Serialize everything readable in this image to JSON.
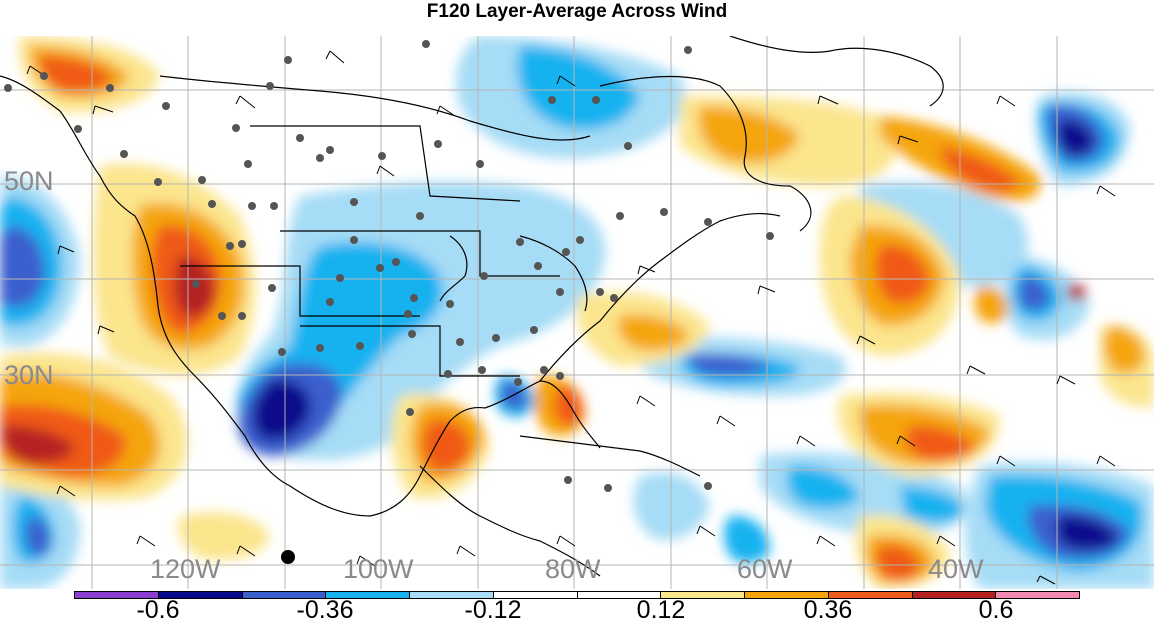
{
  "title": "F120 Layer-Average Across Wind",
  "lat_labels": [
    "50N",
    "30N"
  ],
  "lon_labels": [
    "120W",
    "100W",
    "80W",
    "60W",
    "40W"
  ],
  "colorbar": {
    "colors": [
      "#8a3fd0",
      "#0a0a8c",
      "#3a5fcd",
      "#18b2f0",
      "#a6dcf6",
      "#ffffff",
      "#ffffff",
      "#fbe58d",
      "#f5a50a",
      "#f05a18",
      "#b52020",
      "#f38ab4"
    ],
    "labels": [
      "-0.6",
      "-0.36",
      "-0.12",
      "0.12",
      "0.36",
      "0.6"
    ]
  },
  "palette": {
    "dark_blue": "#0a0a8c",
    "blue": "#3a5fcd",
    "sky": "#18b2f0",
    "light_blue": "#a6dcf6",
    "light_yellow": "#fbe58d",
    "orange": "#f5a50a",
    "red_orange": "#f05a18",
    "dark_red": "#b52020",
    "station_dot": "#555555"
  }
}
